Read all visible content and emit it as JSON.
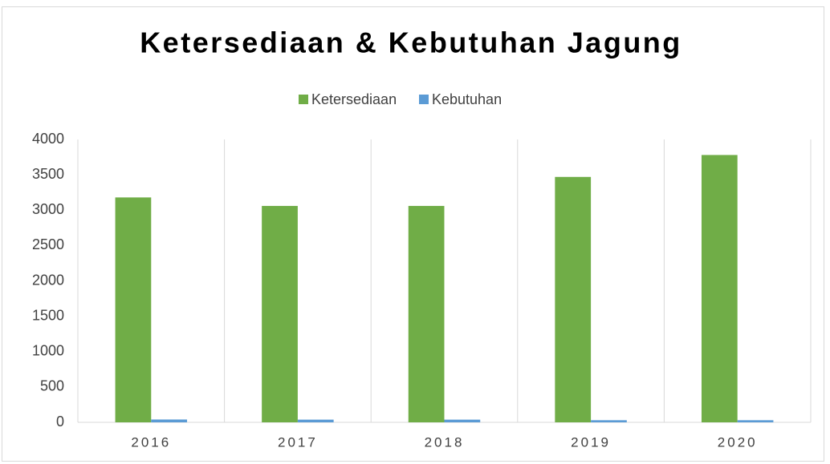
{
  "chart_data": {
    "type": "bar",
    "title": "Ketersediaan & Kebutuhan Jagung",
    "categories": [
      "2016",
      "2017",
      "2018",
      "2019",
      "2020"
    ],
    "series": [
      {
        "name": "Ketersediaan",
        "color": "#70ad47",
        "values": [
          3180,
          3060,
          3060,
          3470,
          3780
        ]
      },
      {
        "name": "Kebutuhan",
        "color": "#5b9bd5",
        "values": [
          40,
          38,
          38,
          30,
          30
        ]
      }
    ],
    "ylim": [
      0,
      4000
    ],
    "yticks": [
      0,
      500,
      1000,
      1500,
      2000,
      2500,
      3000,
      3500,
      4000
    ],
    "legend": "top"
  }
}
